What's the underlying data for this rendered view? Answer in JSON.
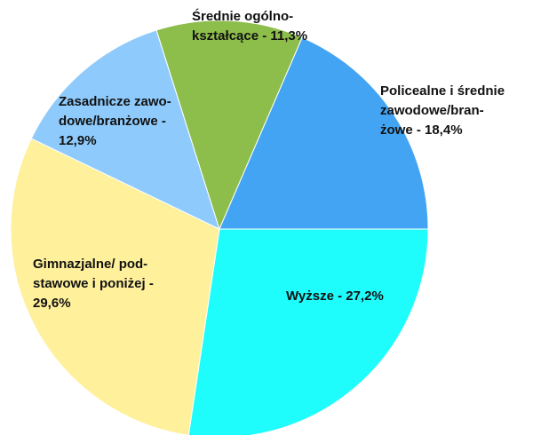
{
  "chart_data": {
    "type": "pie",
    "values": [
      27.2,
      29.6,
      12.9,
      11.3,
      18.4
    ],
    "value_labels": [
      [
        "Wyższe - 27,2%"
      ],
      [
        "Gimnazjalne/ pod-",
        "stawowe i poniżej -",
        "29,6%"
      ],
      [
        "Zasadnicze zawo-",
        "dowe/branżowe -",
        "12,9%"
      ],
      [
        "Średnie ogólno-",
        "kształcące - 11,3%"
      ],
      [
        "Policealne i średnie",
        "zawodowe/bran-",
        "żowe - 18,4%"
      ]
    ],
    "colors": [
      "#1ffcfc",
      "#fff09c",
      "#8ecbfc",
      "#8dbd4b",
      "#43a4f3"
    ]
  }
}
